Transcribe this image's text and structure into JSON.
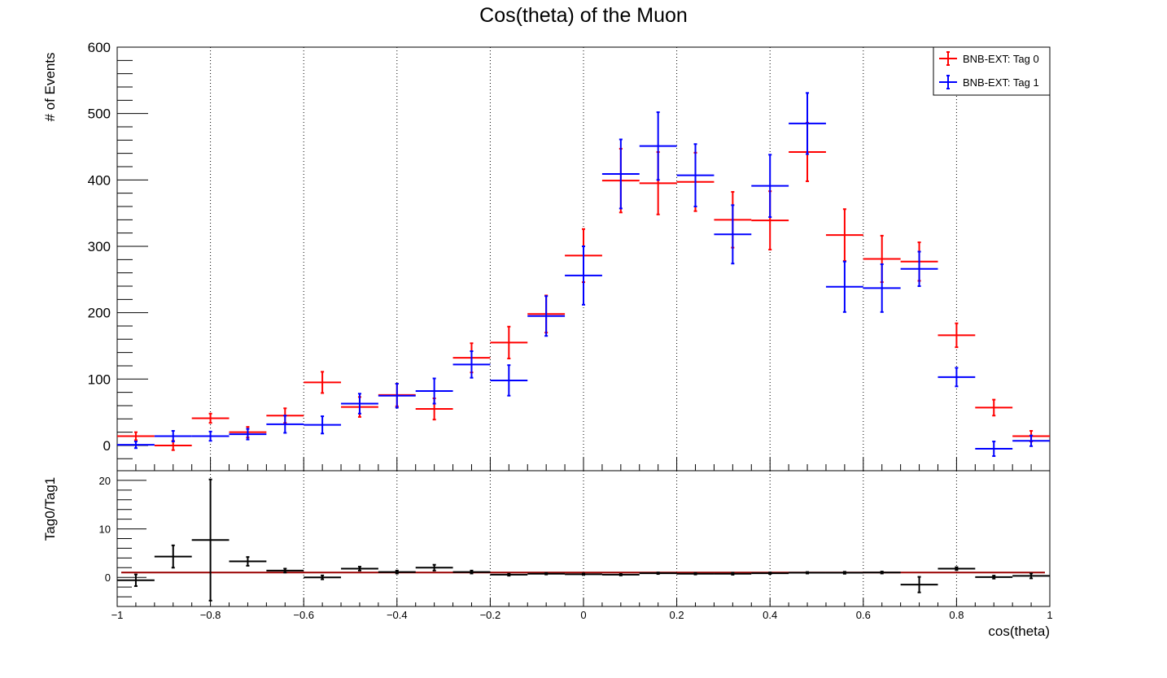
{
  "chart_data": [
    {
      "type": "scatter",
      "style": "histogram-errorbars",
      "title": "Cos(theta) of the Muon",
      "xlabel": "",
      "ylabel": "# of Events",
      "xlim": [
        -1,
        1
      ],
      "ylim": [
        -38,
        600
      ],
      "grid": {
        "x": true,
        "y": false
      },
      "legend_position": "top-right",
      "y_ticks": [
        "0",
        "100",
        "200",
        "300",
        "400",
        "500",
        "600"
      ],
      "x": [
        -0.96,
        -0.88,
        -0.8,
        -0.72,
        -0.64,
        -0.56,
        -0.48,
        -0.4,
        -0.32,
        -0.24,
        -0.16,
        -0.08,
        0.0,
        0.08,
        0.16,
        0.24,
        0.32,
        0.4,
        0.48,
        0.56,
        0.64,
        0.72,
        0.8,
        0.88,
        0.96
      ],
      "x_halfwidth": 0.04,
      "series": [
        {
          "name": "BNB-EXT: Tag 0",
          "color": "#ff0000",
          "y": [
            14,
            0,
            41,
            20,
            45,
            95,
            58,
            76,
            55,
            132,
            155,
            198,
            286,
            399,
            395,
            397,
            340,
            339,
            442,
            317,
            281,
            277,
            166,
            57,
            14
          ],
          "err": [
            6,
            7,
            7,
            8,
            11,
            16,
            15,
            17,
            16,
            22,
            24,
            28,
            40,
            48,
            47,
            44,
            42,
            44,
            44,
            39,
            35,
            29,
            18,
            12,
            8
          ]
        },
        {
          "name": "BNB-EXT: Tag 1",
          "color": "#0000ff",
          "y": [
            1,
            14,
            14,
            17,
            32,
            31,
            63,
            75,
            82,
            122,
            98,
            195,
            256,
            409,
            451,
            407,
            318,
            391,
            485,
            239,
            237,
            266,
            103,
            -5,
            7
          ],
          "err": [
            5,
            8,
            7,
            8,
            13,
            13,
            15,
            18,
            19,
            20,
            23,
            30,
            44,
            52,
            51,
            47,
            44,
            47,
            46,
            38,
            36,
            26,
            14,
            11,
            8
          ]
        }
      ]
    },
    {
      "type": "scatter",
      "style": "ratio-errorbars",
      "title": "",
      "xlabel": "cos(theta)",
      "ylabel": "Tag0/Tag1",
      "xlim": [
        -1,
        1
      ],
      "ylim": [
        -6,
        22
      ],
      "grid": {
        "x": true,
        "y": false
      },
      "x_ticks": [
        "−1",
        "−0.8",
        "−0.6",
        "−0.4",
        "−0.2",
        "0",
        "0.2",
        "0.4",
        "0.6",
        "0.8",
        "1"
      ],
      "y_ticks": [
        "0",
        "10",
        "20"
      ],
      "reference_line": {
        "y": 1,
        "color": "#990000"
      },
      "x": [
        -0.96,
        -0.88,
        -0.8,
        -0.72,
        -0.64,
        -0.56,
        -0.48,
        -0.4,
        -0.32,
        -0.24,
        -0.16,
        -0.08,
        0.0,
        0.08,
        0.16,
        0.24,
        0.32,
        0.4,
        0.48,
        0.56,
        0.64,
        0.72,
        0.8,
        0.88,
        0.96
      ],
      "x_halfwidth": 0.04,
      "series": [
        {
          "name": "",
          "color": "#000000",
          "y": [
            -0.6,
            4.3,
            7.7,
            3.3,
            1.4,
            0.0,
            1.8,
            1.1,
            2.0,
            1.1,
            0.55,
            0.75,
            0.65,
            0.55,
            0.85,
            0.75,
            0.75,
            0.85,
            0.95,
            0.95,
            1.0,
            -1.5,
            1.8,
            0.05,
            0.3
          ],
          "err": [
            1.2,
            2.3,
            12.5,
            0.9,
            0.4,
            0.4,
            0.4,
            0.3,
            0.6,
            0.3,
            0.2,
            0.15,
            0.15,
            0.15,
            0.15,
            0.15,
            0.2,
            0.15,
            0.15,
            0.2,
            0.2,
            1.6,
            0.3,
            0.3,
            0.5
          ]
        }
      ]
    }
  ]
}
